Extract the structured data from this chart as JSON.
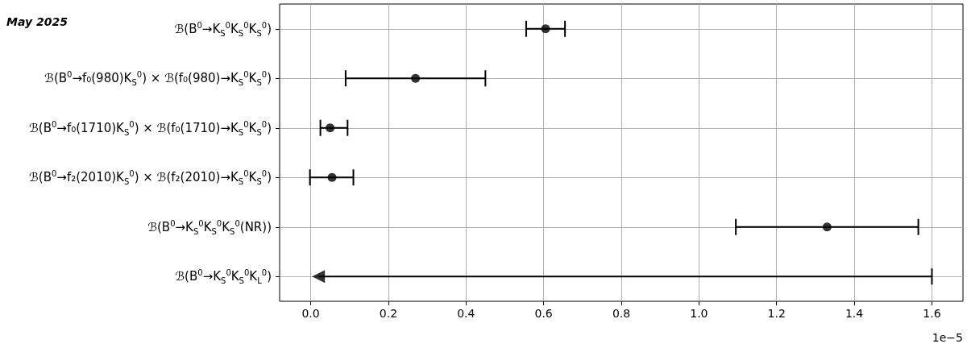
{
  "chart_data": {
    "type": "scatter",
    "orientation": "horizontal",
    "categories": [
      "ℬ(B$^{0}$→K$_{S}$$^{0}$K$_{S}$$^{0}$K$_{S}$$^{0}$)",
      "ℬ(B$^{0}$→f₀(980)K$_{S}$$^{0}$) × ℬ(f₀(980)→K$_{S}$$^{0}$K$_{S}$$^{0}$)",
      "ℬ(B$^{0}$→f₀(1710)K$_{S}$$^{0}$) × ℬ(f₀(1710)→K$_{S}$$^{0}$K$_{S}$$^{0}$)",
      "ℬ(B$^{0}$→f₂(2010)K$_{S}$$^{0}$) × ℬ(f₂(2010)→K$_{S}$$^{0}$K$_{S}$$^{0}$)",
      "ℬ(B$^{0}$→K$_{S}$$^{0}$K$_{S}$$^{0}$K$_{S}$$^{0}$(NR))",
      "ℬ(B$^{0}$→K$_{S}$$^{0}$K$_{S}$$^{0}$K$_{L}$$^{0}$)"
    ],
    "series": [
      {
        "color": "#000000",
        "marker": "circle",
        "values": [
          0.605,
          0.27,
          0.05,
          0.055,
          1.33,
          null
        ],
        "errors": [
          [
            0.555,
            0.655
          ],
          [
            0.09,
            0.45
          ],
          [
            0.025,
            0.095
          ],
          [
            -0.002,
            0.11
          ],
          [
            1.095,
            1.565
          ],
          null
        ]
      },
      {
        "color": "#000000",
        "marker": "triangle",
        "values": [
          null,
          null,
          null,
          null,
          null,
          0.02
        ],
        "errors": [
          null,
          null,
          null,
          null,
          null,
          [
            0.02,
            1.6
          ]
        ]
      }
    ],
    "xlim": [
      -0.08,
      1.68
    ],
    "xticks": [
      {
        "value": 0,
        "label": "0.0"
      },
      {
        "value": 0.2,
        "label": "0.2"
      },
      {
        "value": 0.4,
        "label": "0.4"
      },
      {
        "value": 0.6,
        "label": "0.6"
      },
      {
        "value": 0.8,
        "label": "0.8"
      },
      {
        "value": 1,
        "label": "1.0"
      },
      {
        "value": 1.2,
        "label": "1.2"
      },
      {
        "value": 1.4,
        "label": "1.4"
      },
      {
        "value": 1.6,
        "label": "1.6"
      }
    ],
    "grid": true,
    "annotations": [
      "May 2025",
      "1e−5"
    ]
  }
}
